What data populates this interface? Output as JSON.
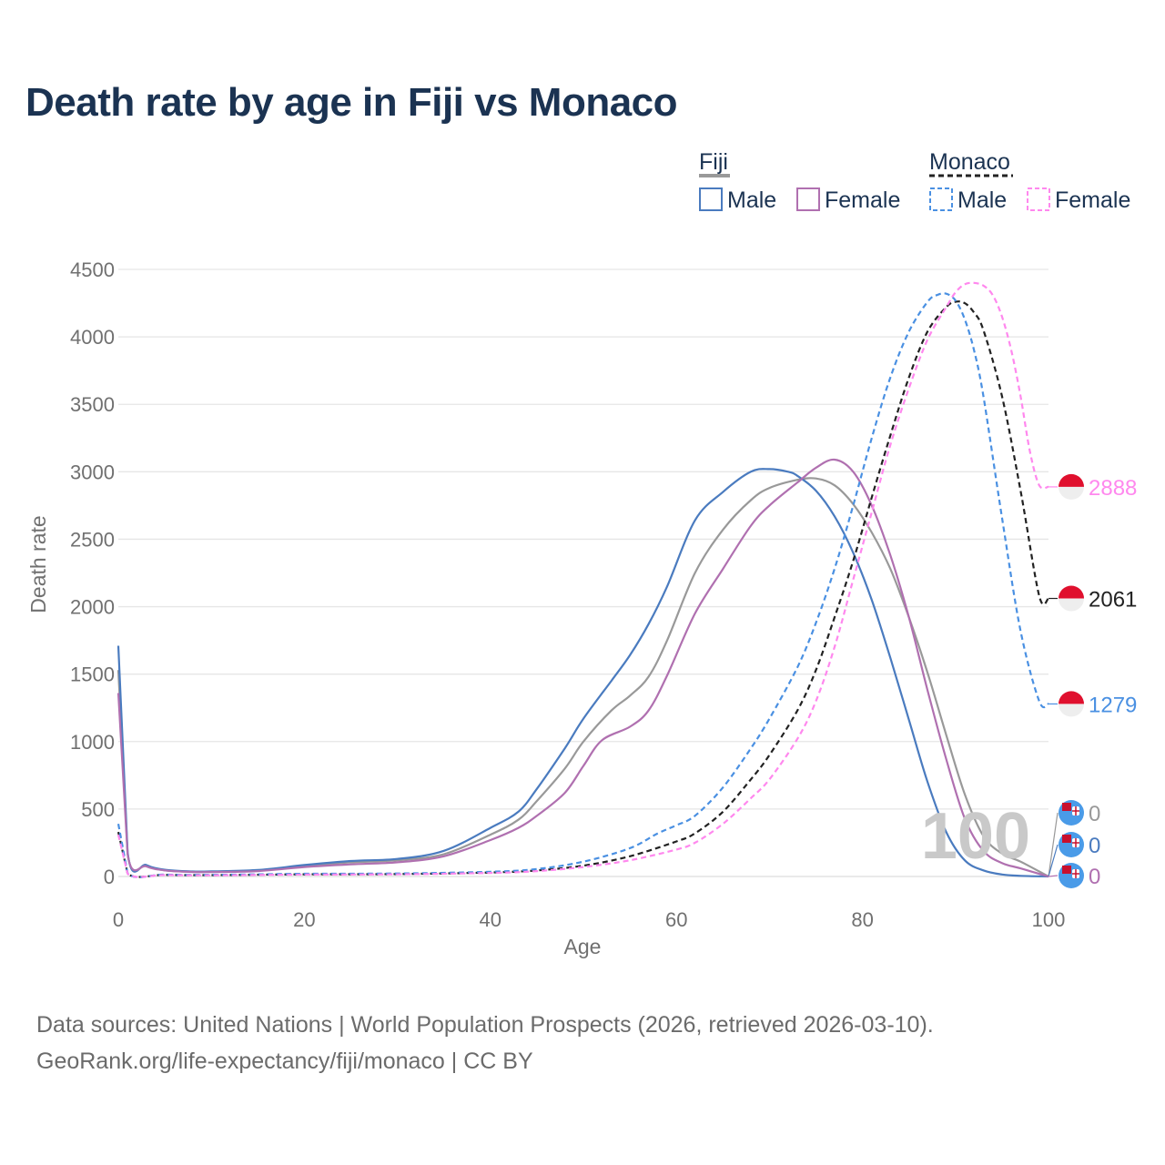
{
  "title": "Death rate by age in Fiji vs Monaco",
  "footer": {
    "source": "Data sources: United Nations | World Population Prospects (2026, retrieved 2026-03-10).",
    "link": "GeoRank.org/life-expectancy/fiji/monaco | CC BY"
  },
  "legend": {
    "groups": [
      {
        "name": "Fiji",
        "items": [
          "Male",
          "Female"
        ]
      },
      {
        "name": "Monaco",
        "items": [
          "Male",
          "Female"
        ]
      }
    ]
  },
  "watermark": "100",
  "chart_data": {
    "type": "line",
    "title": "Death rate by age in Fiji vs Monaco",
    "xlabel": "Age",
    "ylabel": "Death rate",
    "xlim": [
      0,
      100
    ],
    "ylim": [
      0,
      4500
    ],
    "xticks": [
      0,
      20,
      40,
      60,
      80,
      100
    ],
    "yticks": [
      0,
      500,
      1000,
      1500,
      2000,
      2500,
      3000,
      3500,
      4000,
      4500
    ],
    "grid": true,
    "legend_position": "top-right",
    "series": [
      {
        "name": "Fiji Total",
        "country": "Fiji",
        "sex": "Total",
        "color": "#999999",
        "dash": "solid",
        "x": [
          0,
          1,
          3,
          5,
          8,
          10,
          15,
          20,
          25,
          30,
          35,
          40,
          43,
          45,
          48,
          50,
          53,
          55,
          57,
          59,
          62,
          65,
          68,
          70,
          73,
          75,
          77,
          79,
          81,
          83,
          85,
          87,
          89,
          91,
          93,
          95,
          97,
          100
        ],
        "y": [
          1530,
          170,
          80,
          45,
          35,
          35,
          45,
          80,
          105,
          120,
          165,
          310,
          420,
          560,
          800,
          1000,
          1230,
          1340,
          1480,
          1750,
          2250,
          2570,
          2790,
          2880,
          2940,
          2950,
          2900,
          2760,
          2550,
          2280,
          1920,
          1510,
          1050,
          610,
          300,
          170,
          110,
          0
        ],
        "end_label": "0"
      },
      {
        "name": "Fiji Male",
        "country": "Fiji",
        "sex": "Male",
        "color": "#4a7bbf",
        "dash": "solid",
        "x": [
          0,
          1,
          3,
          5,
          8,
          10,
          15,
          20,
          25,
          30,
          35,
          40,
          43,
          45,
          48,
          50,
          53,
          55,
          57,
          59,
          62,
          65,
          68,
          70,
          72,
          73,
          75,
          77,
          79,
          81,
          83,
          85,
          87,
          89,
          91,
          93,
          95,
          97,
          100
        ],
        "y": [
          1710,
          180,
          85,
          50,
          37,
          38,
          48,
          85,
          115,
          130,
          190,
          360,
          480,
          650,
          950,
          1170,
          1450,
          1640,
          1870,
          2150,
          2640,
          2850,
          3000,
          3020,
          3000,
          2970,
          2860,
          2670,
          2400,
          2050,
          1620,
          1160,
          700,
          330,
          120,
          45,
          15,
          5,
          0
        ],
        "end_label": "0"
      },
      {
        "name": "Fiji Female",
        "country": "Fiji",
        "sex": "Female",
        "color": "#b070b0",
        "dash": "solid",
        "x": [
          0,
          1,
          3,
          5,
          8,
          10,
          15,
          20,
          25,
          30,
          35,
          40,
          43,
          45,
          48,
          50,
          52,
          55,
          57,
          59,
          62,
          65,
          68,
          70,
          73,
          75,
          77,
          79,
          81,
          83,
          85,
          87,
          89,
          91,
          93,
          95,
          97,
          100
        ],
        "y": [
          1360,
          165,
          75,
          45,
          33,
          33,
          40,
          70,
          90,
          105,
          150,
          270,
          360,
          450,
          620,
          820,
          1010,
          1110,
          1230,
          1490,
          1950,
          2280,
          2600,
          2750,
          2920,
          3030,
          3090,
          3000,
          2750,
          2380,
          1920,
          1380,
          870,
          430,
          190,
          100,
          60,
          0
        ],
        "end_label": "0"
      },
      {
        "name": "Monaco Total",
        "country": "Monaco",
        "sex": "Total",
        "color": "#222222",
        "dash": "dashed",
        "x": [
          0,
          1,
          5,
          10,
          20,
          30,
          40,
          45,
          50,
          55,
          60,
          62,
          65,
          68,
          70,
          73,
          75,
          77,
          79,
          81,
          83,
          85,
          87,
          89,
          90,
          91,
          92,
          93,
          95,
          97,
          99,
          100
        ],
        "y": [
          330,
          22,
          12,
          10,
          16,
          18,
          30,
          45,
          80,
          150,
          260,
          320,
          480,
          720,
          900,
          1230,
          1530,
          1920,
          2340,
          2810,
          3270,
          3700,
          4040,
          4220,
          4260,
          4250,
          4180,
          4050,
          3560,
          2860,
          2080,
          2061
        ],
        "end_label": "2061"
      },
      {
        "name": "Monaco Male",
        "country": "Monaco",
        "sex": "Male",
        "color": "#4a90e2",
        "dash": "dashed",
        "x": [
          0,
          1,
          5,
          10,
          20,
          30,
          40,
          45,
          50,
          55,
          58,
          60,
          62,
          65,
          68,
          70,
          73,
          75,
          77,
          79,
          81,
          83,
          85,
          87,
          88,
          89,
          90,
          91,
          92,
          93,
          95,
          97,
          99,
          100
        ],
        "y": [
          390,
          25,
          14,
          12,
          20,
          22,
          35,
          55,
          110,
          210,
          320,
          380,
          450,
          660,
          950,
          1170,
          1550,
          1880,
          2280,
          2750,
          3250,
          3700,
          4040,
          4260,
          4310,
          4320,
          4270,
          4130,
          3900,
          3560,
          2660,
          1820,
          1300,
          1279
        ],
        "end_label": "1279"
      },
      {
        "name": "Monaco Female",
        "country": "Monaco",
        "sex": "Female",
        "color": "#ff88ee",
        "dash": "dashed",
        "x": [
          0,
          1,
          5,
          10,
          20,
          30,
          40,
          45,
          50,
          55,
          60,
          62,
          65,
          68,
          70,
          73,
          75,
          77,
          79,
          81,
          83,
          85,
          87,
          89,
          90,
          91,
          92,
          93,
          94,
          95,
          96,
          97,
          98,
          99,
          100
        ],
        "y": [
          310,
          20,
          11,
          9,
          14,
          16,
          26,
          40,
          70,
          120,
          200,
          250,
          390,
          580,
          720,
          1020,
          1300,
          1700,
          2200,
          2700,
          3200,
          3620,
          3980,
          4220,
          4330,
          4390,
          4400,
          4380,
          4310,
          4150,
          3900,
          3560,
          3150,
          2900,
          2888
        ],
        "end_label": "2888"
      }
    ]
  }
}
